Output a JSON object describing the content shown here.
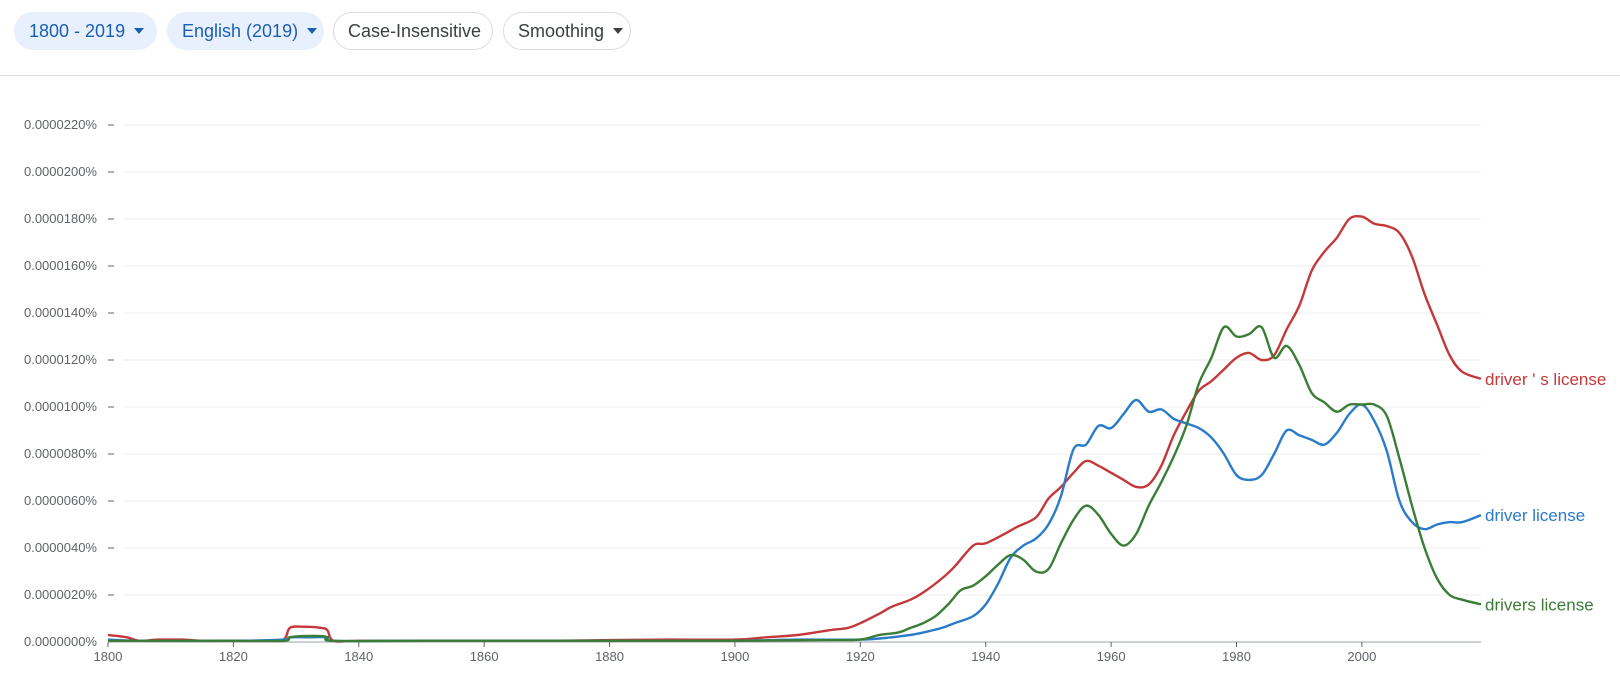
{
  "toolbar": {
    "years_label": "1800 - 2019",
    "corpus_label": "English (2019)",
    "case_label": "Case-Insensitive",
    "smoothing_label": "Smoothing",
    "caret_icon": "chevron-down-icon"
  },
  "chart_data": {
    "type": "line",
    "title": "",
    "xlabel": "",
    "ylabel": "",
    "xlim": [
      1800,
      2019
    ],
    "ylim": [
      0,
      2.2e-05
    ],
    "grid": true,
    "y_ticks": [
      0,
      2e-06,
      4e-06,
      6e-06,
      8e-06,
      1e-05,
      1.2e-05,
      1.4e-05,
      1.6e-05,
      1.8e-05,
      2e-05,
      2.2e-05
    ],
    "y_tick_labels": [
      "0.0000000%",
      "0.0000020%",
      "0.0000040%",
      "0.0000060%",
      "0.0000080%",
      "0.0000100%",
      "0.0000120%",
      "0.0000140%",
      "0.0000160%",
      "0.0000180%",
      "0.0000200%",
      "0.0000220%"
    ],
    "x_ticks": [
      1800,
      1820,
      1840,
      1860,
      1880,
      1900,
      1920,
      1940,
      1960,
      1980,
      2000
    ],
    "x_tick_labels": [
      "1800",
      "1820",
      "1840",
      "1860",
      "1880",
      "1900",
      "1920",
      "1940",
      "1960",
      "1980",
      "2000"
    ],
    "legend_placement": "right-end-of-lines",
    "series": [
      {
        "name": "driver ' s license",
        "color": "#c5383a",
        "points": [
          [
            1800,
            3e-07
          ],
          [
            1803,
            2e-07
          ],
          [
            1805,
            5e-08
          ],
          [
            1808,
            1e-07
          ],
          [
            1812,
            1e-07
          ],
          [
            1815,
            5e-08
          ],
          [
            1820,
            5e-08
          ],
          [
            1825,
            5e-08
          ],
          [
            1828,
            1e-07
          ],
          [
            1829,
            6e-07
          ],
          [
            1831,
            6.5e-07
          ],
          [
            1834,
            6e-07
          ],
          [
            1835,
            5e-07
          ],
          [
            1836,
            5e-08
          ],
          [
            1840,
            5e-08
          ],
          [
            1850,
            5e-08
          ],
          [
            1860,
            5e-08
          ],
          [
            1870,
            5e-08
          ],
          [
            1880,
            8e-08
          ],
          [
            1890,
            1e-07
          ],
          [
            1900,
            1e-07
          ],
          [
            1905,
            2e-07
          ],
          [
            1910,
            3e-07
          ],
          [
            1915,
            5e-07
          ],
          [
            1918,
            6e-07
          ],
          [
            1920,
            8e-07
          ],
          [
            1923,
            1.2e-06
          ],
          [
            1925,
            1.5e-06
          ],
          [
            1928,
            1.8e-06
          ],
          [
            1930,
            2.1e-06
          ],
          [
            1933,
            2.7e-06
          ],
          [
            1935,
            3.2e-06
          ],
          [
            1938,
            4.1e-06
          ],
          [
            1940,
            4.2e-06
          ],
          [
            1943,
            4.6e-06
          ],
          [
            1945,
            4.9e-06
          ],
          [
            1948,
            5.3e-06
          ],
          [
            1950,
            6.1e-06
          ],
          [
            1952,
            6.6e-06
          ],
          [
            1954,
            7.2e-06
          ],
          [
            1956,
            7.7e-06
          ],
          [
            1958,
            7.5e-06
          ],
          [
            1960,
            7.2e-06
          ],
          [
            1962,
            6.9e-06
          ],
          [
            1964,
            6.6e-06
          ],
          [
            1966,
            6.7e-06
          ],
          [
            1968,
            7.5e-06
          ],
          [
            1970,
            8.8e-06
          ],
          [
            1972,
            9.8e-06
          ],
          [
            1974,
            1.07e-05
          ],
          [
            1976,
            1.11e-05
          ],
          [
            1978,
            1.16e-05
          ],
          [
            1980,
            1.21e-05
          ],
          [
            1982,
            1.23e-05
          ],
          [
            1984,
            1.2e-05
          ],
          [
            1986,
            1.22e-05
          ],
          [
            1988,
            1.33e-05
          ],
          [
            1990,
            1.43e-05
          ],
          [
            1992,
            1.58e-05
          ],
          [
            1994,
            1.66e-05
          ],
          [
            1996,
            1.72e-05
          ],
          [
            1998,
            1.8e-05
          ],
          [
            2000,
            1.81e-05
          ],
          [
            2002,
            1.78e-05
          ],
          [
            2004,
            1.77e-05
          ],
          [
            2006,
            1.74e-05
          ],
          [
            2008,
            1.64e-05
          ],
          [
            2010,
            1.48e-05
          ],
          [
            2012,
            1.35e-05
          ],
          [
            2014,
            1.22e-05
          ],
          [
            2016,
            1.15e-05
          ],
          [
            2019,
            1.12e-05
          ]
        ]
      },
      {
        "name": "driver license",
        "color": "#2a7bc9",
        "points": [
          [
            1800,
            1e-07
          ],
          [
            1805,
            5e-08
          ],
          [
            1820,
            5e-08
          ],
          [
            1828,
            1e-07
          ],
          [
            1829,
            2e-07
          ],
          [
            1832,
            2e-07
          ],
          [
            1835,
            2e-07
          ],
          [
            1836,
            5e-08
          ],
          [
            1850,
            5e-08
          ],
          [
            1880,
            5e-08
          ],
          [
            1900,
            5e-08
          ],
          [
            1910,
            1e-07
          ],
          [
            1920,
            1e-07
          ],
          [
            1925,
            2e-07
          ],
          [
            1928,
            3e-07
          ],
          [
            1930,
            4e-07
          ],
          [
            1933,
            6e-07
          ],
          [
            1935,
            8e-07
          ],
          [
            1938,
            1.1e-06
          ],
          [
            1940,
            1.6e-06
          ],
          [
            1942,
            2.5e-06
          ],
          [
            1944,
            3.6e-06
          ],
          [
            1946,
            4.1e-06
          ],
          [
            1948,
            4.4e-06
          ],
          [
            1950,
            5e-06
          ],
          [
            1952,
            6.2e-06
          ],
          [
            1954,
            8.2e-06
          ],
          [
            1956,
            8.4e-06
          ],
          [
            1958,
            9.2e-06
          ],
          [
            1960,
            9.1e-06
          ],
          [
            1962,
            9.7e-06
          ],
          [
            1964,
            1.03e-05
          ],
          [
            1966,
            9.8e-06
          ],
          [
            1968,
            9.9e-06
          ],
          [
            1970,
            9.5e-06
          ],
          [
            1972,
            9.3e-06
          ],
          [
            1974,
            9.1e-06
          ],
          [
            1976,
            8.7e-06
          ],
          [
            1978,
            8e-06
          ],
          [
            1980,
            7.1e-06
          ],
          [
            1982,
            6.9e-06
          ],
          [
            1984,
            7.1e-06
          ],
          [
            1986,
            8e-06
          ],
          [
            1988,
            9e-06
          ],
          [
            1990,
            8.8e-06
          ],
          [
            1992,
            8.6e-06
          ],
          [
            1994,
            8.4e-06
          ],
          [
            1996,
            8.9e-06
          ],
          [
            1998,
            9.7e-06
          ],
          [
            2000,
            1.01e-05
          ],
          [
            2002,
            9.4e-06
          ],
          [
            2004,
            8.1e-06
          ],
          [
            2006,
            6e-06
          ],
          [
            2008,
            5.1e-06
          ],
          [
            2010,
            4.8e-06
          ],
          [
            2012,
            5e-06
          ],
          [
            2014,
            5.1e-06
          ],
          [
            2016,
            5.1e-06
          ],
          [
            2019,
            5.4e-06
          ]
        ]
      },
      {
        "name": "drivers license",
        "color": "#3a7d36",
        "points": [
          [
            1800,
            5e-08
          ],
          [
            1820,
            5e-08
          ],
          [
            1828,
            5e-08
          ],
          [
            1829,
            2e-07
          ],
          [
            1831,
            2.5e-07
          ],
          [
            1834,
            2.5e-07
          ],
          [
            1835,
            2e-07
          ],
          [
            1836,
            5e-08
          ],
          [
            1850,
            5e-08
          ],
          [
            1880,
            5e-08
          ],
          [
            1900,
            5e-08
          ],
          [
            1915,
            8e-08
          ],
          [
            1920,
            1e-07
          ],
          [
            1923,
            3e-07
          ],
          [
            1926,
            4e-07
          ],
          [
            1928,
            6e-07
          ],
          [
            1930,
            8e-07
          ],
          [
            1932,
            1.1e-06
          ],
          [
            1934,
            1.6e-06
          ],
          [
            1936,
            2.2e-06
          ],
          [
            1938,
            2.4e-06
          ],
          [
            1940,
            2.8e-06
          ],
          [
            1942,
            3.3e-06
          ],
          [
            1944,
            3.7e-06
          ],
          [
            1946,
            3.5e-06
          ],
          [
            1948,
            3e-06
          ],
          [
            1950,
            3.1e-06
          ],
          [
            1952,
            4.2e-06
          ],
          [
            1954,
            5.2e-06
          ],
          [
            1956,
            5.8e-06
          ],
          [
            1958,
            5.4e-06
          ],
          [
            1960,
            4.6e-06
          ],
          [
            1962,
            4.1e-06
          ],
          [
            1964,
            4.6e-06
          ],
          [
            1966,
            5.8e-06
          ],
          [
            1968,
            6.8e-06
          ],
          [
            1970,
            7.9e-06
          ],
          [
            1972,
            9.2e-06
          ],
          [
            1974,
            1.1e-05
          ],
          [
            1976,
            1.21e-05
          ],
          [
            1978,
            1.34e-05
          ],
          [
            1980,
            1.3e-05
          ],
          [
            1982,
            1.31e-05
          ],
          [
            1984,
            1.34e-05
          ],
          [
            1986,
            1.21e-05
          ],
          [
            1988,
            1.26e-05
          ],
          [
            1990,
            1.18e-05
          ],
          [
            1992,
            1.06e-05
          ],
          [
            1994,
            1.02e-05
          ],
          [
            1996,
            9.8e-06
          ],
          [
            1998,
            1.01e-05
          ],
          [
            2000,
            1.01e-05
          ],
          [
            2002,
            1.01e-05
          ],
          [
            2004,
            9.6e-06
          ],
          [
            2006,
            7.8e-06
          ],
          [
            2008,
            5.8e-06
          ],
          [
            2010,
            4e-06
          ],
          [
            2012,
            2.7e-06
          ],
          [
            2014,
            2e-06
          ],
          [
            2016,
            1.8e-06
          ],
          [
            2019,
            1.6e-06
          ]
        ]
      }
    ]
  }
}
